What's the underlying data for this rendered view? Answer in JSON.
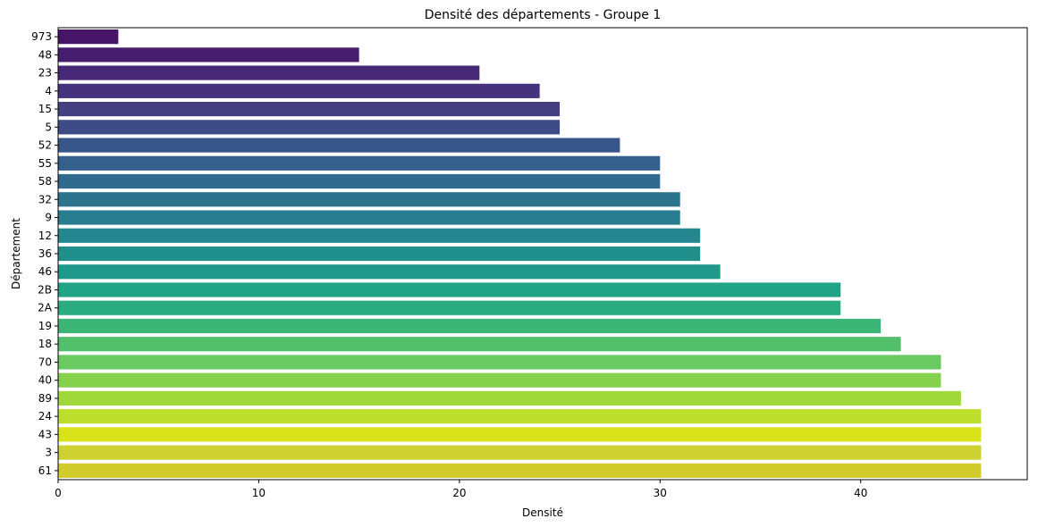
{
  "chart_data": {
    "type": "bar",
    "orientation": "horizontal",
    "title": "Densité des départements - Groupe 1",
    "xlabel": "Densité",
    "ylabel": "Département",
    "xlim": [
      0,
      48.3
    ],
    "x_ticks": [
      0,
      10,
      20,
      30,
      40
    ],
    "grid": false,
    "legend": "none",
    "colormap": "viridis",
    "categories": [
      "973",
      "48",
      "23",
      "4",
      "15",
      "5",
      "52",
      "55",
      "58",
      "32",
      "9",
      "12",
      "36",
      "46",
      "2B",
      "2A",
      "19",
      "18",
      "70",
      "40",
      "89",
      "24",
      "43",
      "3",
      "61"
    ],
    "values": [
      3,
      15,
      21,
      24,
      25,
      25,
      28,
      30,
      30,
      31,
      31,
      32,
      32,
      33,
      39,
      39,
      41,
      42,
      44,
      44,
      45,
      46,
      46,
      46,
      46
    ],
    "colors": [
      "#461567",
      "#471d6f",
      "#472876",
      "#45337d",
      "#424081",
      "#3d4c87",
      "#39568b",
      "#34608c",
      "#306a8e",
      "#2c738e",
      "#287d8e",
      "#24868e",
      "#21908c",
      "#1f998a",
      "#20a386",
      "#2aac80",
      "#3bb677",
      "#52bf6b",
      "#6ac960",
      "#85d04d",
      "#a0d83c",
      "#bede2e",
      "#dae319",
      "#cdd131",
      "#d2cb2c"
    ]
  }
}
